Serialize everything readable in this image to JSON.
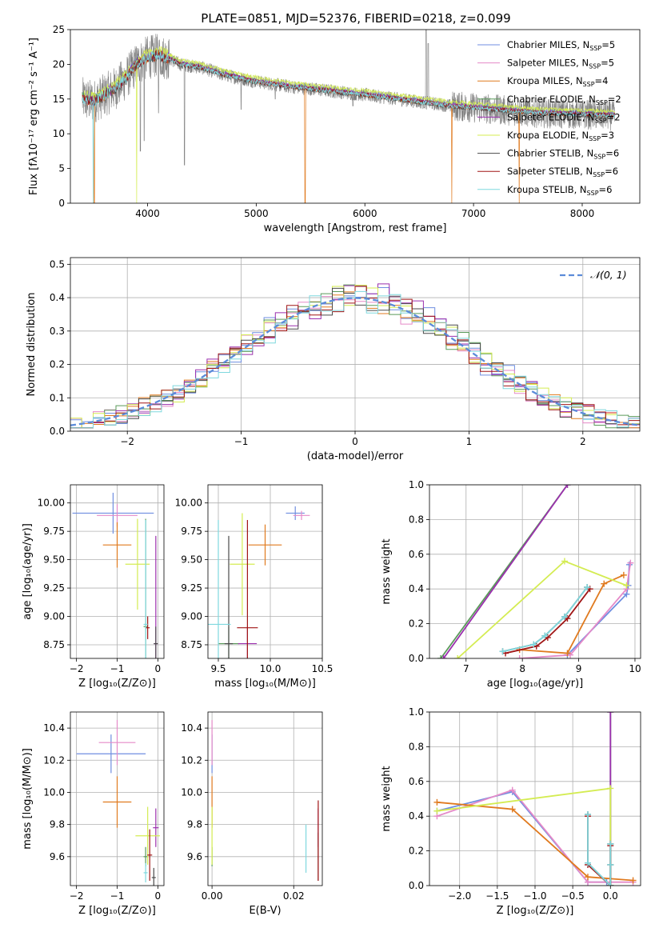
{
  "figure": {
    "title": "PLATE=0851, MJD=52376, FIBERID=0218, z=0.099"
  },
  "models": [
    {
      "name": "Chabrier MILES",
      "nssp": "5",
      "color": "#6f8ee0"
    },
    {
      "name": "Salpeter MILES",
      "nssp": "5",
      "color": "#e58ac8"
    },
    {
      "name": "Kroupa MILES",
      "nssp": "4",
      "color": "#e07a1f"
    },
    {
      "name": "Chabrier ELODIE",
      "nssp": "2",
      "color": "#5a9a5a"
    },
    {
      "name": "Salpeter ELODIE",
      "nssp": "2",
      "color": "#9b2fae"
    },
    {
      "name": "Kroupa ELODIE",
      "nssp": "3",
      "color": "#d4ec52"
    },
    {
      "name": "Chabrier STELIB",
      "nssp": "6",
      "color": "#4a4a4a"
    },
    {
      "name": "Salpeter STELIB",
      "nssp": "6",
      "color": "#a01515"
    },
    {
      "name": "Kroupa STELIB",
      "nssp": "6",
      "color": "#7fd8de"
    }
  ],
  "chart_data": [
    {
      "id": "spectrum",
      "type": "line",
      "title": "PLATE=0851, MJD=52376, FIBERID=0218, z=0.099",
      "xlabel": "wavelength [Angstrom, rest frame]",
      "ylabel": "Flux [fλ10⁻¹⁷ erg cm⁻² s⁻¹ A⁻¹]",
      "xlim": [
        3290,
        8530
      ],
      "ylim": [
        0,
        25
      ],
      "xticks": [
        4000,
        5000,
        6000,
        7000,
        8000
      ],
      "yticks": [
        0,
        5,
        10,
        15,
        20,
        25
      ],
      "legend_placement": "top-right",
      "data_color": "#808080",
      "continuum": {
        "x": [
          3400,
          3500,
          3600,
          3700,
          3800,
          3900,
          4000,
          4100,
          4200,
          4300,
          4500,
          4700,
          5000,
          5300,
          5600,
          6000,
          6400,
          6800,
          7200,
          7600,
          8000,
          8300
        ],
        "y": [
          15.0,
          14.6,
          15.5,
          16.5,
          18.0,
          20.0,
          21.0,
          21.3,
          20.8,
          20.0,
          19.5,
          18.5,
          17.5,
          16.8,
          16.3,
          15.6,
          14.8,
          14.0,
          13.5,
          13.0,
          12.8,
          12.6
        ]
      },
      "emission_lines": [
        {
          "x": 6563,
          "y": 25
        },
        {
          "x": 6583,
          "y": 23
        },
        {
          "x": 5007,
          "y": 17.5
        }
      ],
      "absorption_lines": [
        {
          "x": 3934,
          "y": 7.5
        },
        {
          "x": 3969,
          "y": 9.0
        },
        {
          "x": 4101,
          "y": 13.0
        },
        {
          "x": 4340,
          "y": 5.5
        },
        {
          "x": 4861,
          "y": 13.5
        },
        {
          "x": 5175,
          "y": 15.0
        },
        {
          "x": 5890,
          "y": 14.0
        }
      ]
    },
    {
      "id": "residuals",
      "type": "line",
      "xlabel": "(data-model)/error",
      "ylabel": "Normed distribution",
      "xlim": [
        -2.5,
        2.5
      ],
      "ylim": [
        0,
        0.52
      ],
      "xticks": [
        -2,
        -1,
        0,
        1,
        2
      ],
      "yticks": [
        0.0,
        0.1,
        0.2,
        0.3,
        0.4,
        0.5
      ],
      "grid": true,
      "legend_placement": "top-right",
      "gaussian_label": "𝒩(0, 1)",
      "gaussian_color": "#5b8bd9",
      "bin_width": 0.1
    },
    {
      "id": "age-vs-Z",
      "type": "scatter",
      "xlabel": "Z [log₁₀(Z/Z⊙)]",
      "ylabel": "age  [log₁₀(age/yr)]",
      "xlim": [
        -2.15,
        0.15
      ],
      "ylim": [
        8.63,
        10.16
      ],
      "xticks": [
        -2,
        -1,
        0
      ],
      "yticks": [
        8.75,
        9.0,
        9.25,
        9.5,
        9.75,
        10.0
      ],
      "grid": true,
      "points": [
        {
          "model": 0,
          "x": -1.1,
          "xerr": 1.0,
          "y": 9.91,
          "yerr": 0.18
        },
        {
          "model": 1,
          "x": -1.0,
          "xerr": 0.5,
          "y": 9.89,
          "yerr": 0.1
        },
        {
          "model": 2,
          "x": -1.0,
          "xerr": 0.35,
          "y": 9.63,
          "yerr": 0.2
        },
        {
          "model": 3,
          "x": -0.3,
          "xerr": 0.05,
          "y": 8.91,
          "yerr": 0.95
        },
        {
          "model": 4,
          "x": -0.05,
          "xerr": 0.05,
          "y": 8.76,
          "yerr": 0.95
        },
        {
          "model": 5,
          "x": -0.5,
          "xerr": 0.3,
          "y": 9.46,
          "yerr": 0.4
        },
        {
          "model": 6,
          "x": -0.05,
          "xerr": 0.05,
          "y": 8.76,
          "yerr": 0.15
        },
        {
          "model": 7,
          "x": -0.25,
          "xerr": 0.05,
          "y": 8.9,
          "yerr": 0.1
        },
        {
          "model": 8,
          "x": -0.3,
          "xerr": 0.05,
          "y": 8.93,
          "yerr": 0.92
        }
      ]
    },
    {
      "id": "age-vs-mass",
      "type": "scatter",
      "xlabel": "mass [log₁₀(M/M⊙)]",
      "xlim": [
        9.4,
        10.5
      ],
      "ylim": [
        8.63,
        10.16
      ],
      "xticks": [
        9.5,
        10.0,
        10.5
      ],
      "yticks": [
        8.75,
        9.0,
        9.25,
        9.5,
        9.75,
        10.0
      ],
      "grid": true,
      "points": [
        {
          "model": 0,
          "x": 10.24,
          "xerr": 0.09,
          "y": 9.91,
          "yerr": 0.06
        },
        {
          "model": 1,
          "x": 10.3,
          "xerr": 0.08,
          "y": 9.89,
          "yerr": 0.04
        },
        {
          "model": 2,
          "x": 9.95,
          "xerr": 0.16,
          "y": 9.63,
          "yerr": 0.18
        },
        {
          "model": 3,
          "x": 9.6,
          "xerr": 0.1,
          "y": 8.76,
          "yerr": 0.15
        },
        {
          "model": 4,
          "x": 9.78,
          "xerr": 0.09,
          "y": 8.76,
          "yerr": 0.15
        },
        {
          "model": 5,
          "x": 9.73,
          "xerr": 0.12,
          "y": 9.46,
          "yerr": 0.45
        },
        {
          "model": 6,
          "x": 9.6,
          "xerr": 0.04,
          "y": 8.76,
          "yerr": 0.95
        },
        {
          "model": 7,
          "x": 9.78,
          "xerr": 0.1,
          "y": 8.9,
          "yerr": 0.95
        },
        {
          "model": 8,
          "x": 9.5,
          "xerr": 0.12,
          "y": 8.93,
          "yerr": 0.92
        }
      ]
    },
    {
      "id": "massweight-vs-age",
      "type": "line",
      "xlabel": "age  [log₁₀(age/yr)]",
      "ylabel": "mass weight",
      "xlim": [
        6.35,
        10.1
      ],
      "ylim": [
        0,
        1
      ],
      "xticks": [
        7,
        8,
        9,
        10
      ],
      "yticks": [
        0.0,
        0.2,
        0.4,
        0.6,
        0.8,
        1.0
      ],
      "grid": true,
      "series": [
        {
          "model": 0,
          "x": [
            8.8,
            9.85,
            9.88,
            9.9
          ],
          "y": [
            0.02,
            0.37,
            0.42,
            0.54
          ]
        },
        {
          "model": 1,
          "x": [
            7.95,
            8.85,
            9.85,
            9.92
          ],
          "y": [
            0.0,
            0.02,
            0.4,
            0.55
          ]
        },
        {
          "model": 2,
          "x": [
            7.95,
            8.8,
            9.45,
            9.8
          ],
          "y": [
            0.05,
            0.03,
            0.43,
            0.48
          ]
        },
        {
          "model": 3,
          "x": [
            6.55,
            8.8
          ],
          "y": [
            0.0,
            1.0
          ]
        },
        {
          "model": 4,
          "x": [
            6.6,
            8.8
          ],
          "y": [
            0.0,
            1.0
          ]
        },
        {
          "model": 5,
          "x": [
            6.85,
            8.75,
            9.85
          ],
          "y": [
            0.0,
            0.56,
            0.42
          ]
        },
        {
          "model": 6,
          "x": [
            7.65,
            8.2,
            8.4,
            8.75,
            9.15
          ],
          "y": [
            0.04,
            0.08,
            0.13,
            0.24,
            0.41
          ]
        },
        {
          "model": 7,
          "x": [
            7.7,
            8.25,
            8.45,
            8.8,
            9.2
          ],
          "y": [
            0.03,
            0.07,
            0.12,
            0.23,
            0.4
          ]
        },
        {
          "model": 8,
          "x": [
            7.65,
            8.2,
            8.4,
            8.75,
            9.15
          ],
          "y": [
            0.04,
            0.08,
            0.13,
            0.24,
            0.41
          ]
        }
      ]
    },
    {
      "id": "mass-vs-Z",
      "type": "scatter",
      "xlabel": "Z [log₁₀(Z/Z⊙)]",
      "ylabel": "mass [log₁₀(M/M⊙)]",
      "xlim": [
        -2.15,
        0.15
      ],
      "ylim": [
        9.42,
        10.5
      ],
      "xticks": [
        -2,
        -1,
        0
      ],
      "yticks": [
        9.6,
        9.8,
        10.0,
        10.2,
        10.4
      ],
      "grid": true,
      "points": [
        {
          "model": 0,
          "x": -1.15,
          "xerr": 0.85,
          "y": 10.24,
          "yerr": 0.12
        },
        {
          "model": 1,
          "x": -1.0,
          "xerr": 0.45,
          "y": 10.31,
          "yerr": 0.14
        },
        {
          "model": 2,
          "x": -1.0,
          "xerr": 0.35,
          "y": 9.94,
          "yerr": 0.16
        },
        {
          "model": 3,
          "x": -0.3,
          "xerr": 0.05,
          "y": 9.6,
          "yerr": 0.06
        },
        {
          "model": 4,
          "x": -0.05,
          "xerr": 0.07,
          "y": 9.78,
          "yerr": 0.12
        },
        {
          "model": 5,
          "x": -0.25,
          "xerr": 0.3,
          "y": 9.73,
          "yerr": 0.18
        },
        {
          "model": 6,
          "x": -0.1,
          "xerr": 0.05,
          "y": 9.47,
          "yerr": 0.06
        },
        {
          "model": 7,
          "x": -0.2,
          "xerr": 0.06,
          "y": 9.61,
          "yerr": 0.16
        },
        {
          "model": 8,
          "x": -0.3,
          "xerr": 0.05,
          "y": 9.5,
          "yerr": 0.06
        }
      ]
    },
    {
      "id": "mass-vs-ebv",
      "type": "scatter",
      "xlabel": "E(B-V)",
      "xlim": [
        -0.001,
        0.027
      ],
      "ylim": [
        9.42,
        10.5
      ],
      "xticks": [
        0.0,
        0.02
      ],
      "yticks": [
        9.6,
        9.8,
        10.0,
        10.2,
        10.4
      ],
      "grid": true,
      "points": [
        {
          "model": 0,
          "x": 0.0,
          "xerr": 0.0,
          "y": 10.24,
          "yerr": 0.12
        },
        {
          "model": 1,
          "x": 0.0,
          "xerr": 0.0,
          "y": 10.31,
          "yerr": 0.14
        },
        {
          "model": 2,
          "x": 0.0,
          "xerr": 0.0,
          "y": 9.94,
          "yerr": 0.16
        },
        {
          "model": 3,
          "x": 0.0,
          "xerr": 0.0,
          "y": 9.6,
          "yerr": 0.06
        },
        {
          "model": 4,
          "x": 0.026,
          "xerr": 0.0,
          "y": 9.78,
          "yerr": 0.12
        },
        {
          "model": 5,
          "x": 0.0,
          "xerr": 0.0,
          "y": 9.73,
          "yerr": 0.18
        },
        {
          "model": 6,
          "x": 0.026,
          "xerr": 0.0,
          "y": 9.6,
          "yerr": 0.15
        },
        {
          "model": 7,
          "x": 0.026,
          "xerr": 0.0,
          "y": 9.7,
          "yerr": 0.25
        },
        {
          "model": 8,
          "x": 0.023,
          "xerr": 0.0,
          "y": 9.65,
          "yerr": 0.15
        }
      ]
    },
    {
      "id": "massweight-vs-Z",
      "type": "line",
      "xlabel": "Z [log₁₀(Z/Z⊙)]",
      "ylabel": "mass weight",
      "xlim": [
        -2.4,
        0.4
      ],
      "ylim": [
        0,
        1
      ],
      "xticks": [
        -2.0,
        -1.5,
        -1.0,
        -0.5,
        0.0
      ],
      "yticks": [
        0.0,
        0.2,
        0.4,
        0.6,
        0.8,
        1.0
      ],
      "grid": true,
      "series": [
        {
          "model": 0,
          "x": [
            -2.3,
            -1.3,
            -0.3,
            -0.05
          ],
          "y": [
            0.43,
            0.54,
            0.02,
            0.02
          ]
        },
        {
          "model": 1,
          "x": [
            -2.3,
            -1.3,
            -0.3,
            0.3
          ],
          "y": [
            0.4,
            0.55,
            0.02,
            0.02
          ]
        },
        {
          "model": 2,
          "x": [
            -2.3,
            -1.3,
            -0.3,
            0.3
          ],
          "y": [
            0.48,
            0.44,
            0.05,
            0.03
          ]
        },
        {
          "model": 3,
          "x": [
            0.0,
            0.0
          ],
          "y": [
            0.0,
            1.0
          ]
        },
        {
          "model": 4,
          "x": [
            0.0,
            0.0
          ],
          "y": [
            0.0,
            1.0
          ]
        },
        {
          "model": 5,
          "x": [
            -2.3,
            0.0,
            0.0
          ],
          "y": [
            0.43,
            0.56,
            0.0
          ]
        },
        {
          "model": 6,
          "x": [
            -0.3,
            -0.3,
            0.0,
            0.0,
            0.0
          ],
          "y": [
            0.41,
            0.13,
            0.0,
            0.12,
            0.24
          ]
        },
        {
          "model": 7,
          "x": [
            -0.3,
            -0.3,
            0.0,
            0.0
          ],
          "y": [
            0.4,
            0.12,
            0.0,
            0.23
          ]
        },
        {
          "model": 8,
          "x": [
            -0.3,
            -0.3,
            0.0,
            0.0,
            0.0
          ],
          "y": [
            0.41,
            0.13,
            0.0,
            0.12,
            0.24
          ]
        }
      ]
    }
  ]
}
